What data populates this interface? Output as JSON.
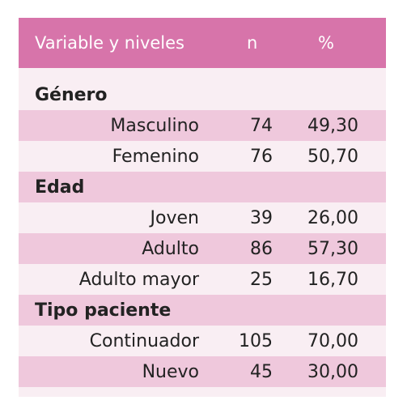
{
  "table": {
    "headers": {
      "variable": "Variable y niveles",
      "n": "n",
      "percent": "%"
    },
    "groups": [
      {
        "label": "Género",
        "rows": [
          {
            "label": "Masculino",
            "n": "74",
            "percent": "49,30"
          },
          {
            "label": "Femenino",
            "n": "76",
            "percent": "50,70"
          }
        ]
      },
      {
        "label": "Edad",
        "rows": [
          {
            "label": "Joven",
            "n": "39",
            "percent": "26,00"
          },
          {
            "label": "Adulto",
            "n": "86",
            "percent": "57,30"
          },
          {
            "label": "Adulto mayor",
            "n": "25",
            "percent": "16,70"
          }
        ]
      },
      {
        "label": "Tipo paciente",
        "rows": [
          {
            "label": "Continuador",
            "n": "105",
            "percent": "70,00"
          },
          {
            "label": "Nuevo",
            "n": "45",
            "percent": "30,00"
          }
        ]
      }
    ]
  },
  "colors": {
    "header_bg": "#d774aa",
    "row_pink": "#efc8dc",
    "row_light": "#f9eef3"
  }
}
